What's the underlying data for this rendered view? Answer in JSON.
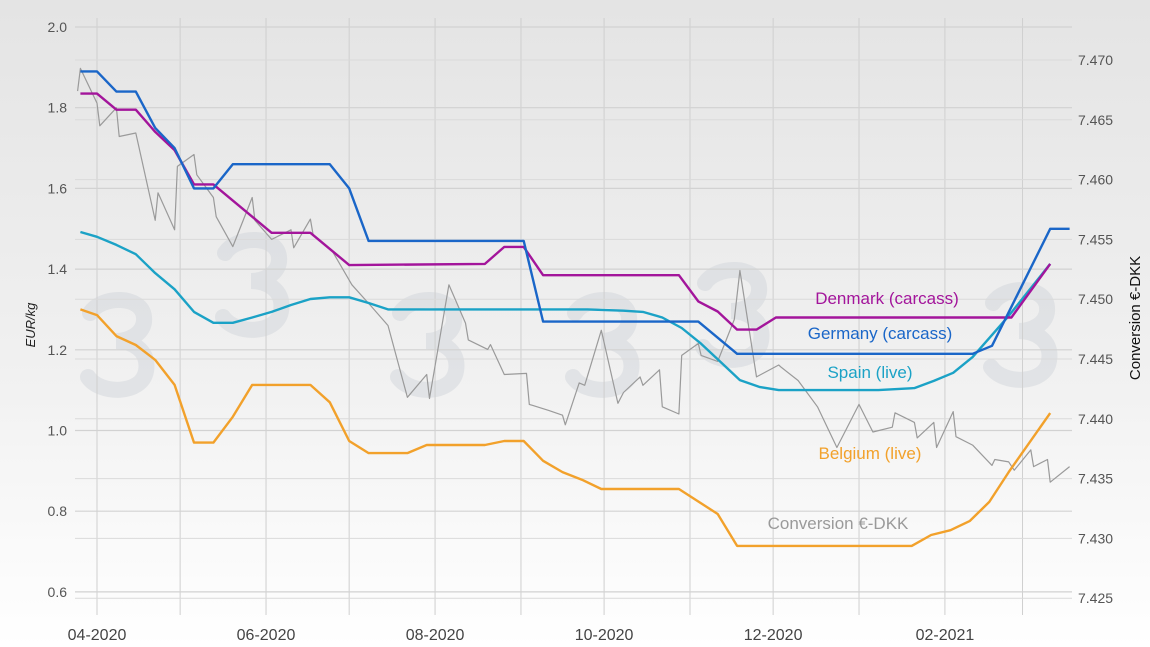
{
  "chart_data": {
    "type": "line",
    "title": "",
    "ylabel": "EUR/kg",
    "y2label": "Conversion €-DKK",
    "ylim": [
      0.6,
      2.0
    ],
    "y2lim": [
      7.425,
      7.47
    ],
    "yticks": [
      "2.0",
      "1.8",
      "1.6",
      "1.4",
      "1.2",
      "1.0",
      "0.8",
      "0.6"
    ],
    "y2ticks": [
      "7.470",
      "7.465",
      "7.460",
      "7.455",
      "7.450",
      "7.445",
      "7.440",
      "7.435",
      "7.430",
      "7.425"
    ],
    "xticks": [
      {
        "date": "2020-04-01",
        "label": "04-2020"
      },
      {
        "date": "2020-06-01",
        "label": "06-2020"
      },
      {
        "date": "2020-08-01",
        "label": "08-2020"
      },
      {
        "date": "2020-10-01",
        "label": "10-2020"
      },
      {
        "date": "2020-12-01",
        "label": "12-2020"
      },
      {
        "date": "2021-02-01",
        "label": "02-2021"
      }
    ],
    "x_grid": "monthly",
    "grid": true,
    "legend": "inline labels",
    "series": [
      {
        "name": "Denmark (carcass)",
        "axis": "left",
        "color": "#a3159b",
        "points": [
          [
            "2020-03-26",
            1.835
          ],
          [
            "2020-04-01",
            1.835
          ],
          [
            "2020-04-08",
            1.795
          ],
          [
            "2020-04-15",
            1.795
          ],
          [
            "2020-04-22",
            1.74
          ],
          [
            "2020-04-29",
            1.695
          ],
          [
            "2020-05-06",
            1.61
          ],
          [
            "2020-05-13",
            1.61
          ],
          [
            "2020-06-03",
            1.49
          ],
          [
            "2020-06-17",
            1.49
          ],
          [
            "2020-07-01",
            1.41
          ],
          [
            "2020-08-19",
            1.413
          ],
          [
            "2020-08-26",
            1.455
          ],
          [
            "2020-09-02",
            1.455
          ],
          [
            "2020-09-09",
            1.385
          ],
          [
            "2020-10-28",
            1.385
          ],
          [
            "2020-11-04",
            1.32
          ],
          [
            "2020-11-11",
            1.295
          ],
          [
            "2020-11-18",
            1.25
          ],
          [
            "2020-11-25",
            1.25
          ],
          [
            "2020-12-02",
            1.28
          ],
          [
            "2021-02-25",
            1.28
          ],
          [
            "2021-03-11",
            1.413
          ]
        ]
      },
      {
        "name": "Germany (carcass)",
        "axis": "left",
        "color": "#1a66c8",
        "points": [
          [
            "2020-03-26",
            1.89
          ],
          [
            "2020-04-01",
            1.89
          ],
          [
            "2020-04-08",
            1.84
          ],
          [
            "2020-04-15",
            1.84
          ],
          [
            "2020-04-22",
            1.75
          ],
          [
            "2020-04-29",
            1.7
          ],
          [
            "2020-05-06",
            1.6
          ],
          [
            "2020-05-13",
            1.6
          ],
          [
            "2020-05-20",
            1.66
          ],
          [
            "2020-06-24",
            1.66
          ],
          [
            "2020-07-01",
            1.6
          ],
          [
            "2020-07-08",
            1.47
          ],
          [
            "2020-09-02",
            1.47
          ],
          [
            "2020-09-09",
            1.27
          ],
          [
            "2020-11-04",
            1.27
          ],
          [
            "2020-11-18",
            1.19
          ],
          [
            "2021-02-11",
            1.19
          ],
          [
            "2021-02-18",
            1.21
          ],
          [
            "2021-03-11",
            1.5
          ],
          [
            "2021-03-18",
            1.5
          ]
        ]
      },
      {
        "name": "Spain (live)",
        "axis": "left",
        "color": "#1ba2c6",
        "points": [
          [
            "2020-03-26",
            1.492
          ],
          [
            "2020-04-01",
            1.48
          ],
          [
            "2020-04-08",
            1.46
          ],
          [
            "2020-04-15",
            1.437
          ],
          [
            "2020-04-22",
            1.39
          ],
          [
            "2020-04-29",
            1.35
          ],
          [
            "2020-05-06",
            1.294
          ],
          [
            "2020-05-13",
            1.267
          ],
          [
            "2020-05-20",
            1.267
          ],
          [
            "2020-05-27",
            1.28
          ],
          [
            "2020-06-03",
            1.294
          ],
          [
            "2020-06-10",
            1.311
          ],
          [
            "2020-06-17",
            1.326
          ],
          [
            "2020-06-24",
            1.33
          ],
          [
            "2020-07-01",
            1.33
          ],
          [
            "2020-07-08",
            1.316
          ],
          [
            "2020-07-15",
            1.3
          ],
          [
            "2020-09-25",
            1.3
          ],
          [
            "2020-10-08",
            1.297
          ],
          [
            "2020-10-15",
            1.294
          ],
          [
            "2020-10-22",
            1.28
          ],
          [
            "2020-10-29",
            1.254
          ],
          [
            "2020-11-05",
            1.215
          ],
          [
            "2020-11-12",
            1.17
          ],
          [
            "2020-11-19",
            1.125
          ],
          [
            "2020-11-26",
            1.108
          ],
          [
            "2020-12-03",
            1.1
          ],
          [
            "2021-01-08",
            1.1
          ],
          [
            "2021-01-21",
            1.105
          ],
          [
            "2021-01-28",
            1.123
          ],
          [
            "2021-02-04",
            1.143
          ],
          [
            "2021-02-11",
            1.182
          ],
          [
            "2021-02-24",
            1.284
          ],
          [
            "2021-03-11",
            1.413
          ]
        ]
      },
      {
        "name": "Belgium (live)",
        "axis": "left",
        "color": "#f2a12b",
        "points": [
          [
            "2020-03-26",
            1.3
          ],
          [
            "2020-04-01",
            1.286
          ],
          [
            "2020-04-08",
            1.234
          ],
          [
            "2020-04-15",
            1.212
          ],
          [
            "2020-04-22",
            1.175
          ],
          [
            "2020-04-29",
            1.113
          ],
          [
            "2020-05-06",
            0.97
          ],
          [
            "2020-05-13",
            0.97
          ],
          [
            "2020-05-20",
            1.034
          ],
          [
            "2020-05-27",
            1.113
          ],
          [
            "2020-06-17",
            1.113
          ],
          [
            "2020-06-24",
            1.07
          ],
          [
            "2020-07-01",
            0.974
          ],
          [
            "2020-07-08",
            0.944
          ],
          [
            "2020-07-22",
            0.944
          ],
          [
            "2020-07-29",
            0.964
          ],
          [
            "2020-08-19",
            0.964
          ],
          [
            "2020-08-26",
            0.974
          ],
          [
            "2020-09-02",
            0.974
          ],
          [
            "2020-09-09",
            0.925
          ],
          [
            "2020-09-16",
            0.897
          ],
          [
            "2020-09-23",
            0.878
          ],
          [
            "2020-09-30",
            0.855
          ],
          [
            "2020-10-28",
            0.855
          ],
          [
            "2020-11-11",
            0.793
          ],
          [
            "2020-11-18",
            0.714
          ],
          [
            "2021-01-20",
            0.714
          ],
          [
            "2021-01-27",
            0.741
          ],
          [
            "2021-02-03",
            0.753
          ],
          [
            "2021-02-10",
            0.776
          ],
          [
            "2021-02-17",
            0.823
          ],
          [
            "2021-02-24",
            0.897
          ],
          [
            "2021-03-11",
            1.043
          ]
        ]
      },
      {
        "name": "Conversion €-DKK",
        "axis": "right",
        "color": "#9a9a9a",
        "points": [
          [
            "2020-03-25",
            7.4674
          ],
          [
            "2020-03-26",
            7.4693
          ],
          [
            "2020-04-01",
            7.4664
          ],
          [
            "2020-04-02",
            7.4645
          ],
          [
            "2020-04-08",
            7.466
          ],
          [
            "2020-04-09",
            7.4636
          ],
          [
            "2020-04-15",
            7.4639
          ],
          [
            "2020-04-22",
            7.4566
          ],
          [
            "2020-04-23",
            7.4589
          ],
          [
            "2020-04-29",
            7.4558
          ],
          [
            "2020-04-30",
            7.4611
          ],
          [
            "2020-05-06",
            7.4621
          ],
          [
            "2020-05-07",
            7.4604
          ],
          [
            "2020-05-13",
            7.4585
          ],
          [
            "2020-05-14",
            7.4569
          ],
          [
            "2020-05-20",
            7.4544
          ],
          [
            "2020-05-27",
            7.4585
          ],
          [
            "2020-05-28",
            7.4566
          ],
          [
            "2020-06-03",
            7.455
          ],
          [
            "2020-06-10",
            7.4558
          ],
          [
            "2020-06-11",
            7.4543
          ],
          [
            "2020-06-17",
            7.4567
          ],
          [
            "2020-06-18",
            7.4554
          ],
          [
            "2020-06-25",
            7.454
          ],
          [
            "2020-07-02",
            7.4512
          ],
          [
            "2020-07-09",
            7.4494
          ],
          [
            "2020-07-15",
            7.4478
          ],
          [
            "2020-07-22",
            7.4418
          ],
          [
            "2020-07-29",
            7.4437
          ],
          [
            "2020-07-30",
            7.4417
          ],
          [
            "2020-08-06",
            7.4512
          ],
          [
            "2020-08-12",
            7.448
          ],
          [
            "2020-08-13",
            7.4466
          ],
          [
            "2020-08-20",
            7.4458
          ],
          [
            "2020-08-21",
            7.4462
          ],
          [
            "2020-08-26",
            7.4437
          ],
          [
            "2020-09-03",
            7.4438
          ],
          [
            "2020-09-04",
            7.4412
          ],
          [
            "2020-09-11",
            7.4407
          ],
          [
            "2020-09-16",
            7.4403
          ],
          [
            "2020-09-17",
            7.4395
          ],
          [
            "2020-09-22",
            7.443
          ],
          [
            "2020-09-24",
            7.4428
          ],
          [
            "2020-09-30",
            7.4474
          ],
          [
            "2020-10-06",
            7.4413
          ],
          [
            "2020-10-08",
            7.4422
          ],
          [
            "2020-10-14",
            7.4435
          ],
          [
            "2020-10-15",
            7.4428
          ],
          [
            "2020-10-21",
            7.4441
          ],
          [
            "2020-10-22",
            7.441
          ],
          [
            "2020-10-28",
            7.4404
          ],
          [
            "2020-10-29",
            7.4453
          ],
          [
            "2020-11-04",
            7.4463
          ],
          [
            "2020-11-05",
            7.4453
          ],
          [
            "2020-11-11",
            7.4448
          ],
          [
            "2020-11-17",
            7.4483
          ],
          [
            "2020-11-19",
            7.4524
          ],
          [
            "2020-11-25",
            7.4435
          ],
          [
            "2020-12-03",
            7.4445
          ],
          [
            "2020-12-04",
            7.4443
          ],
          [
            "2020-12-10",
            7.4432
          ],
          [
            "2020-12-17",
            7.441
          ],
          [
            "2020-12-24",
            7.4376
          ],
          [
            "2021-01-01",
            7.4412
          ],
          [
            "2021-01-06",
            7.4389
          ],
          [
            "2021-01-13",
            7.4393
          ],
          [
            "2021-01-14",
            7.4405
          ],
          [
            "2021-01-21",
            7.4397
          ],
          [
            "2021-01-22",
            7.4384
          ],
          [
            "2021-01-28",
            7.4397
          ],
          [
            "2021-01-29",
            7.4376
          ],
          [
            "2021-02-04",
            7.4406
          ],
          [
            "2021-02-05",
            7.4385
          ],
          [
            "2021-02-11",
            7.4378
          ],
          [
            "2021-02-18",
            7.4361
          ],
          [
            "2021-02-19",
            7.4366
          ],
          [
            "2021-02-24",
            7.4364
          ],
          [
            "2021-02-26",
            7.4357
          ],
          [
            "2021-03-04",
            7.4374
          ],
          [
            "2021-03-05",
            7.436
          ],
          [
            "2021-03-10",
            7.4366
          ],
          [
            "2021-03-11",
            7.4347
          ],
          [
            "2021-03-18",
            7.436
          ]
        ]
      }
    ]
  }
}
